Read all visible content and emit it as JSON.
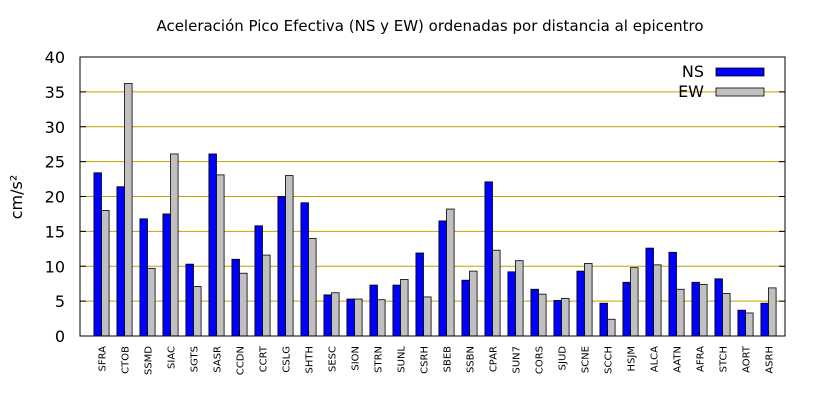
{
  "chart_data": {
    "type": "bar",
    "title": "Aceleración Pico Efectiva (NS y EW) ordenadas por distancia al epicentro",
    "xlabel": "",
    "ylabel": "cm/s²",
    "ylim": [
      0,
      40
    ],
    "yticks": [
      0,
      5,
      10,
      15,
      20,
      25,
      30,
      35,
      40
    ],
    "grid": "horizontal",
    "legend_position": "top-right",
    "categories": [
      "SFRA",
      "CTOB",
      "SSMD",
      "SIAC",
      "SGTS",
      "SASR",
      "CCDN",
      "CCRT",
      "CSLG",
      "SHTH",
      "SESC",
      "SION",
      "STRN",
      "SUNL",
      "CSRH",
      "SBEB",
      "SSBN",
      "CPAR",
      "SUN7",
      "CORS",
      "SJUD",
      "SCNE",
      "SCCH",
      "HSJM",
      "ALCA",
      "AATN",
      "AFRA",
      "STCH",
      "AORT",
      "ASRH"
    ],
    "series": [
      {
        "name": "NS",
        "color": "#0000ff",
        "values": [
          23.4,
          21.4,
          16.8,
          17.5,
          10.3,
          26.1,
          11.0,
          15.8,
          20.0,
          19.1,
          5.9,
          5.3,
          7.3,
          7.3,
          11.9,
          16.5,
          8.0,
          22.1,
          9.2,
          6.7,
          5.1,
          9.3,
          4.7,
          7.7,
          12.6,
          12.0,
          7.7,
          8.2,
          3.7,
          4.7
        ]
      },
      {
        "name": "EW",
        "color": "#c0c0c0",
        "values": [
          18.0,
          36.2,
          9.7,
          26.1,
          7.1,
          23.1,
          9.0,
          11.6,
          23.0,
          14.0,
          6.2,
          5.3,
          5.2,
          8.1,
          5.6,
          18.2,
          9.3,
          12.3,
          10.8,
          6.0,
          5.4,
          10.4,
          2.4,
          9.8,
          10.2,
          6.7,
          7.4,
          6.1,
          3.3,
          6.9
        ]
      }
    ]
  }
}
